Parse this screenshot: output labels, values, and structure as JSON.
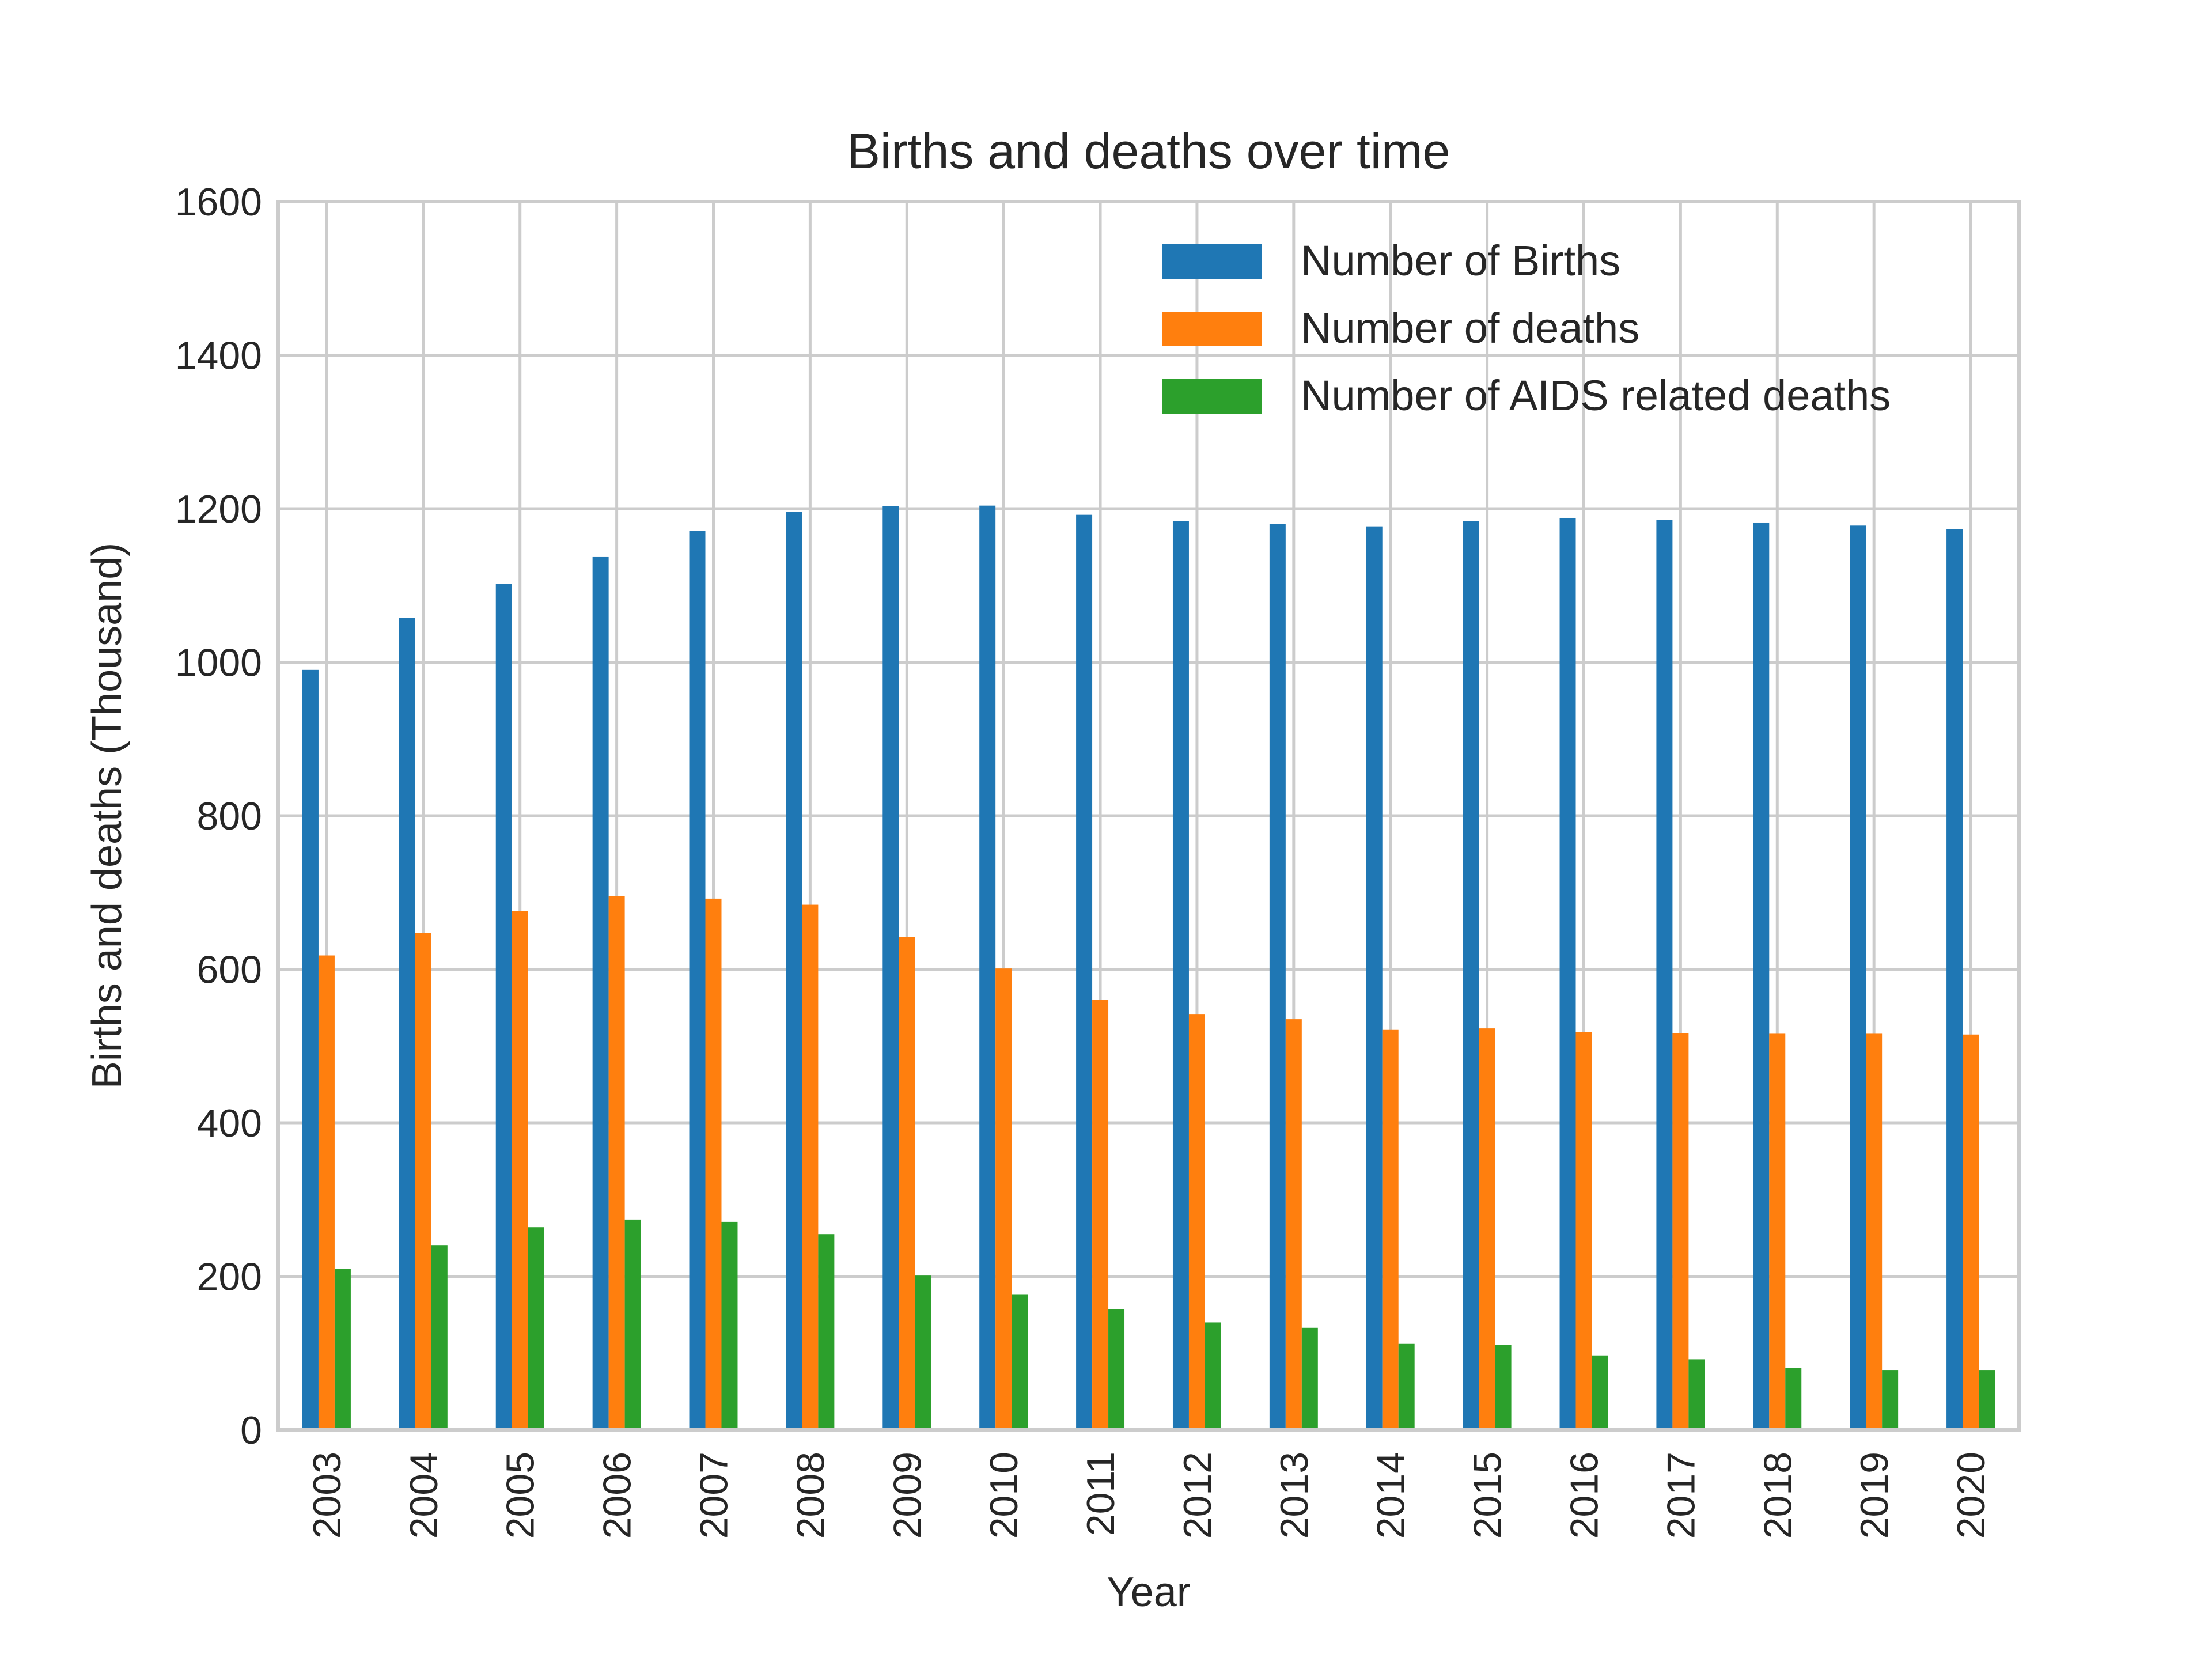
{
  "chart_data": {
    "type": "bar",
    "title": "Births and deaths over time",
    "xlabel": "Year",
    "ylabel": "Births and deaths (Thousand)",
    "ylim": [
      0,
      1600
    ],
    "yticks": [
      "0",
      "200",
      "400",
      "600",
      "800",
      "1000",
      "1200",
      "1400",
      "1600"
    ],
    "grid": true,
    "legend_position": "top-right",
    "categories": [
      "2003",
      "2004",
      "2005",
      "2006",
      "2007",
      "2008",
      "2009",
      "2010",
      "2011",
      "2012",
      "2013",
      "2014",
      "2015",
      "2016",
      "2017",
      "2018",
      "2019",
      "2020"
    ],
    "series": [
      {
        "name": "Number of Births",
        "color": "#1f77b4",
        "values": [
          990,
          1058,
          1102,
          1137,
          1171,
          1196,
          1203,
          1204,
          1192,
          1184,
          1180,
          1177,
          1184,
          1188,
          1185,
          1182,
          1178,
          1173
        ]
      },
      {
        "name": "Number of deaths",
        "color": "#ff7f0e",
        "values": [
          618,
          647,
          676,
          695,
          692,
          684,
          642,
          601,
          560,
          541,
          535,
          521,
          523,
          518,
          517,
          516,
          516,
          515
        ]
      },
      {
        "name": "Number of AIDS related deaths",
        "color": "#2ca02c",
        "values": [
          210,
          240,
          264,
          274,
          271,
          255,
          201,
          176,
          157,
          140,
          133,
          112,
          111,
          97,
          92,
          81,
          78,
          78
        ]
      }
    ]
  }
}
